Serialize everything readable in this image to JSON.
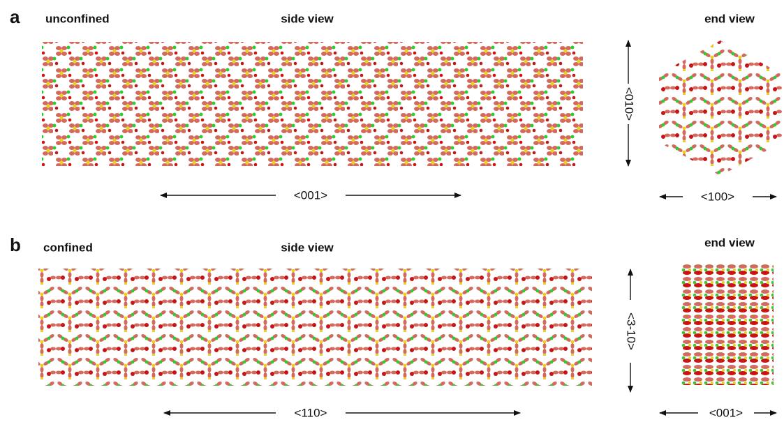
{
  "panels": [
    {
      "label": "a",
      "condition": "unconfined",
      "side_view": {
        "title": "side view",
        "axis_horizontal": "<001>",
        "axis_vertical": "<010>"
      },
      "end_view": {
        "title": "end view",
        "axis_horizontal": "<100>"
      }
    },
    {
      "label": "b",
      "condition": "confined",
      "side_view": {
        "title": "side view",
        "axis_horizontal": "<110>",
        "axis_vertical": "<3-10>"
      },
      "end_view": {
        "title": "end view",
        "axis_horizontal": "<001>"
      }
    }
  ]
}
